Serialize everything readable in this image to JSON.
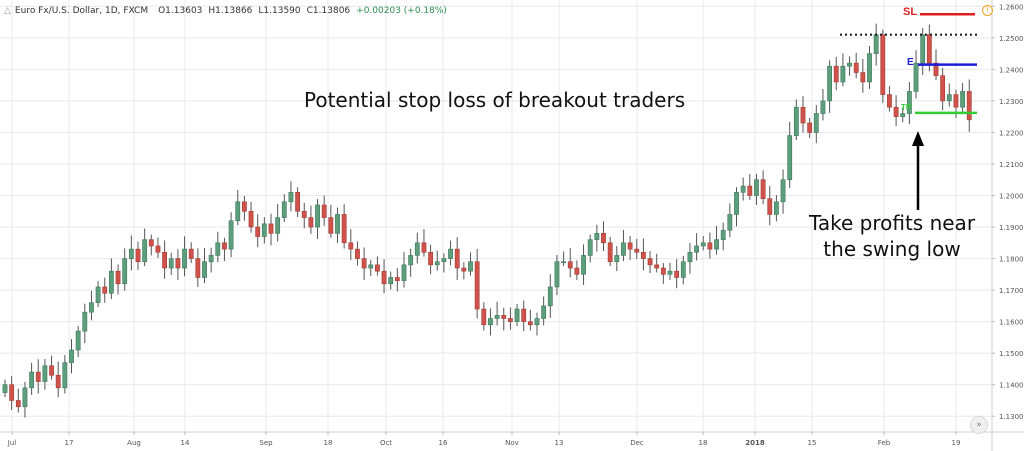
{
  "header": {
    "symbol": "Euro Fx/U.S. Dollar, 1D, FXCM",
    "open": "O1.13603",
    "high": "H1.13866",
    "low": "L1.13590",
    "close": "C1.13806",
    "change": "+0.00203 (+0.18%)",
    "collapse_icon": "chevron-up-icon",
    "info_icon": "info-icon"
  },
  "annotations": {
    "stop_loss_note": "Potential stop loss of breakout traders",
    "take_profit_line1": "Take profits near",
    "take_profit_line2": "the swing low",
    "sl_label": "SL",
    "entry_label": "E",
    "tp_label": "TP"
  },
  "colors": {
    "up_candle": "#5d9e7c",
    "down_candle": "#d0524a",
    "stop_loss_line": "#e02020",
    "entry_line": "#1d1dd6",
    "take_profit_line": "#33cc33",
    "resistance_line": "#222222",
    "grid": "#e8e8ee"
  },
  "chart_data": {
    "type": "candlestick",
    "title": "Euro Fx/U.S. Dollar, 1D, FXCM",
    "ylim": [
      1.125,
      1.262
    ],
    "y_ticks": [
      "1.26000",
      "1.25000",
      "1.24000",
      "1.23000",
      "1.22000",
      "1.21000",
      "1.20000",
      "1.19000",
      "1.18000",
      "1.17000",
      "1.16000",
      "1.15000",
      "1.14000",
      "1.13000"
    ],
    "x_tick_labels": [
      "Jul",
      "17",
      "Aug",
      "14",
      "Sep",
      "18",
      "Oct",
      "16",
      "Nov",
      "13",
      "Dec",
      "18",
      "2018",
      "15",
      "Feb",
      "19"
    ],
    "grid": true,
    "levels": {
      "stop_loss": 1.2575,
      "resistance": 1.251,
      "entry": 1.2415,
      "take_profit": 1.2262
    },
    "closes": [
      1.14,
      1.135,
      1.133,
      1.139,
      1.144,
      1.141,
      1.146,
      1.143,
      1.139,
      1.147,
      1.151,
      1.157,
      1.163,
      1.166,
      1.171,
      1.169,
      1.176,
      1.172,
      1.18,
      1.183,
      1.179,
      1.186,
      1.184,
      1.182,
      1.177,
      1.18,
      1.177,
      1.183,
      1.18,
      1.174,
      1.179,
      1.181,
      1.185,
      1.183,
      1.192,
      1.198,
      1.195,
      1.19,
      1.187,
      1.191,
      1.188,
      1.193,
      1.198,
      1.201,
      1.195,
      1.193,
      1.19,
      1.197,
      1.193,
      1.188,
      1.194,
      1.185,
      1.183,
      1.18,
      1.177,
      1.178,
      1.176,
      1.172,
      1.174,
      1.173,
      1.178,
      1.181,
      1.185,
      1.182,
      1.178,
      1.179,
      1.18,
      1.183,
      1.177,
      1.176,
      1.179,
      1.164,
      1.159,
      1.161,
      1.162,
      1.161,
      1.16,
      1.164,
      1.16,
      1.159,
      1.161,
      1.165,
      1.171,
      1.179,
      1.179,
      1.177,
      1.175,
      1.181,
      1.186,
      1.188,
      1.185,
      1.179,
      1.181,
      1.185,
      1.183,
      1.182,
      1.18,
      1.178,
      1.177,
      1.175,
      1.176,
      1.174,
      1.179,
      1.182,
      1.184,
      1.185,
      1.183,
      1.186,
      1.189,
      1.194,
      1.201,
      1.203,
      1.2,
      1.205,
      1.199,
      1.194,
      1.198,
      1.205,
      1.219,
      1.228,
      1.223,
      1.22,
      1.226,
      1.23,
      1.241,
      1.236,
      1.241,
      1.242,
      1.239,
      1.236,
      1.245,
      1.251,
      1.232,
      1.228,
      1.225,
      1.226,
      1.233,
      1.242,
      1.251,
      1.242,
      1.238,
      1.23,
      1.232,
      1.228,
      1.233,
      1.224
    ]
  }
}
